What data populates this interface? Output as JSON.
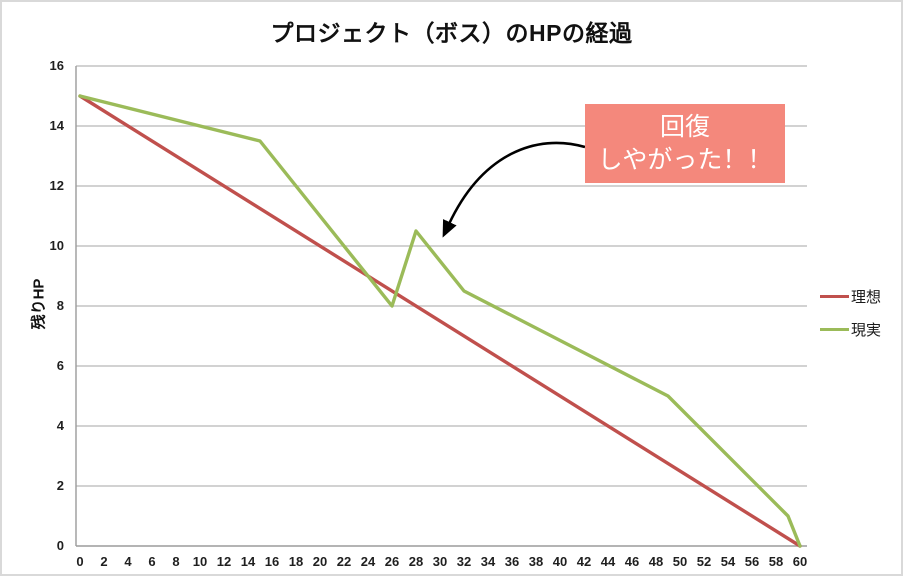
{
  "chart_data": {
    "type": "line",
    "title": "プロジェクト（ボス）のHPの経過",
    "xlabel": "",
    "ylabel": "残りHP",
    "xlim": [
      0,
      60
    ],
    "ylim": [
      0,
      16
    ],
    "x_ticks": [
      0,
      2,
      4,
      6,
      8,
      10,
      12,
      14,
      16,
      18,
      20,
      22,
      24,
      26,
      28,
      30,
      32,
      34,
      36,
      38,
      40,
      42,
      44,
      46,
      48,
      50,
      52,
      54,
      56,
      58,
      60
    ],
    "y_ticks": [
      0,
      2,
      4,
      6,
      8,
      10,
      12,
      14,
      16
    ],
    "grid": "horizontal gridlines only",
    "legend_position": "right",
    "series": [
      {
        "name": "理想",
        "color": "#C0504D",
        "x": [
          0,
          60
        ],
        "y": [
          15,
          0
        ]
      },
      {
        "name": "現実",
        "color": "#9BBB59",
        "x": [
          0,
          15,
          26,
          28,
          32,
          49,
          59,
          60
        ],
        "y": [
          15,
          13.5,
          8,
          10.5,
          8.5,
          5,
          1,
          0
        ]
      }
    ],
    "annotation": {
      "lines": [
        "回復",
        "しやがった！！"
      ],
      "bg_color": "#F4887C",
      "text_color": "#FFFFFF",
      "arrow_color": "#000000",
      "points_to": {
        "x": 28,
        "y": 10.5
      }
    },
    "colors": {
      "gridline": "#C3C3C3",
      "axis": "#9B9B9B",
      "tick_text": "#1F1F1F"
    }
  }
}
